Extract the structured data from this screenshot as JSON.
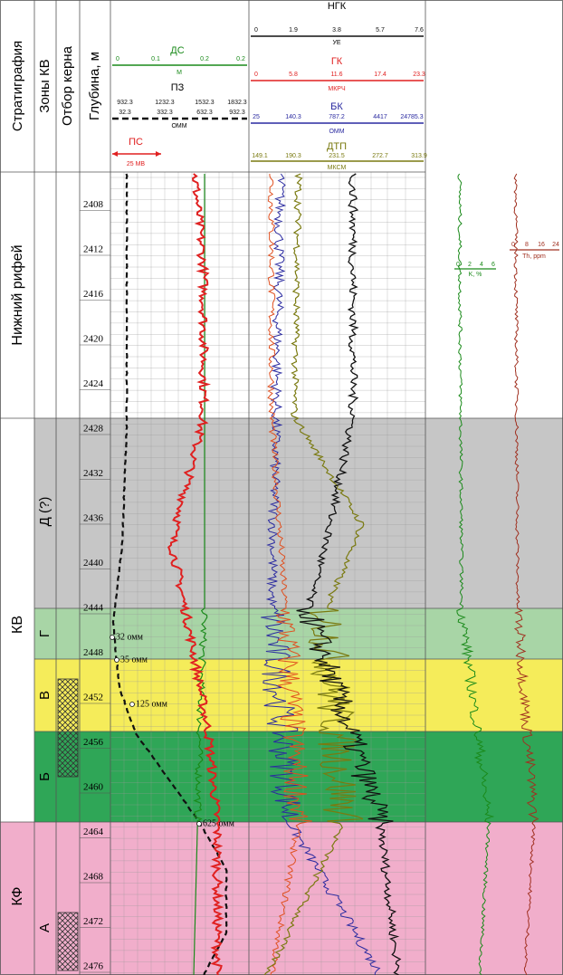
{
  "columns": {
    "stratigraphy": "Стратиграфия",
    "zones": "Зоны КВ",
    "core": "Отбор керна",
    "depth": "Глубина, м"
  },
  "track1": {
    "ds": {
      "name": "ДС",
      "scale": [
        "0",
        "0.1",
        "0.2",
        "0.2"
      ],
      "unit": "М"
    },
    "pz": {
      "name": "ПЗ",
      "scale_top": [
        "932.3",
        "1232.3",
        "1532.3",
        "1832.3"
      ],
      "scale_bottom": [
        "32.3",
        "332.3",
        "632.3",
        "932.3"
      ],
      "unit": "ОММ"
    },
    "ps": {
      "name": "ПС",
      "unit": "25 МВ"
    }
  },
  "track2": {
    "ngk": {
      "name": "НГК",
      "scale": [
        "0",
        "1.9",
        "3.8",
        "5.7",
        "7.6"
      ],
      "unit": "УЕ"
    },
    "gk": {
      "name": "ГК",
      "scale": [
        "0",
        "5.8",
        "11.6",
        "17.4",
        "23.3"
      ],
      "unit": "МКРЧ"
    },
    "bk": {
      "name": "БК",
      "scale": [
        "25",
        "140.3",
        "787.2",
        "4417",
        "24785.3"
      ],
      "unit": "ОММ"
    },
    "dtp": {
      "name": "ДТП",
      "scale": [
        "149.1",
        "190.3",
        "231.5",
        "272.7",
        "313.9"
      ],
      "unit": "МКСМ"
    }
  },
  "track3": {
    "k": {
      "scale": [
        "0",
        "2",
        "4",
        "6"
      ],
      "unit": "K, %"
    },
    "th": {
      "scale": [
        "0",
        "8",
        "16",
        "24"
      ],
      "unit": "Th, ppm"
    }
  },
  "depths": [
    2408,
    2412,
    2416,
    2420,
    2424,
    2428,
    2432,
    2436,
    2440,
    2444,
    2448,
    2452,
    2456,
    2460,
    2464,
    2468,
    2472,
    2476
  ],
  "stratigraphy": [
    "Нижний рифей",
    "КВ",
    "КФ"
  ],
  "zones": [
    "Д (?)",
    "Г",
    "В",
    "Б",
    "А"
  ],
  "annotations": [
    "32 омм",
    "35 омм",
    "125 омм",
    "625 омм"
  ]
}
